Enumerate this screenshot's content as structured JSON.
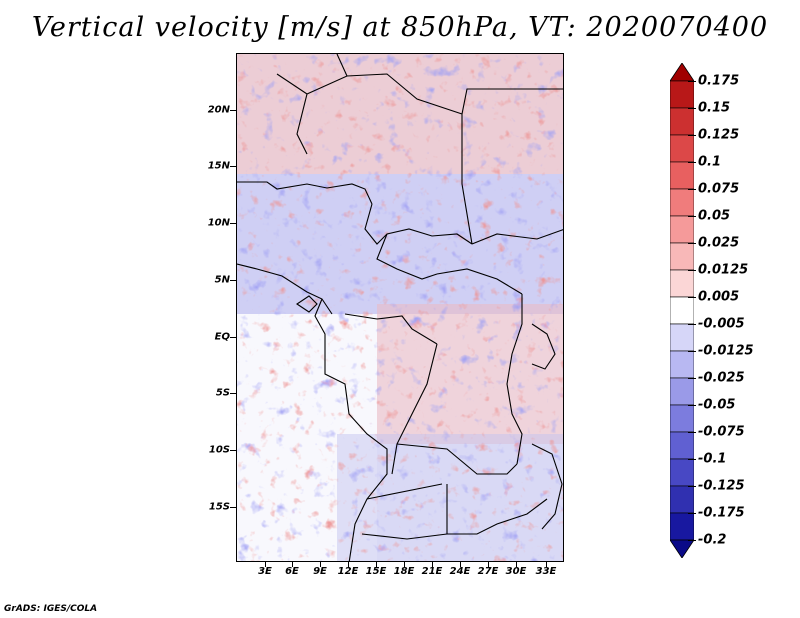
{
  "title": "Vertical velocity [m/s] at 850hPa, VT: 2020070400",
  "lat_labels": [
    "20N",
    "15N",
    "10N",
    "5N",
    "EQ",
    "5S",
    "10S",
    "15S"
  ],
  "lon_labels": [
    "3E",
    "6E",
    "9E",
    "12E",
    "15E",
    "18E",
    "21E",
    "24E",
    "27E",
    "30E",
    "33E"
  ],
  "colorbar": {
    "labels": [
      "0.175",
      "0.15",
      "0.125",
      "0.1",
      "0.075",
      "0.05",
      "0.025",
      "0.0125",
      "0.005",
      "-0.005",
      "-0.0125",
      "-0.025",
      "-0.05",
      "-0.075",
      "-0.1",
      "-0.125",
      "-0.175",
      "-0.2"
    ],
    "colors": [
      "#a00000",
      "#b81818",
      "#cc3030",
      "#dc4848",
      "#e86060",
      "#f07c7c",
      "#f59a9a",
      "#f8b8b8",
      "#fbd6d6",
      "#ffffff",
      "#d6d6f8",
      "#b8b8f2",
      "#9a9ae8",
      "#7c7cde",
      "#6060d2",
      "#4848c4",
      "#3030b0",
      "#1818a0",
      "#0a0a88"
    ]
  },
  "footer": "GrADS: IGES/COLA"
}
